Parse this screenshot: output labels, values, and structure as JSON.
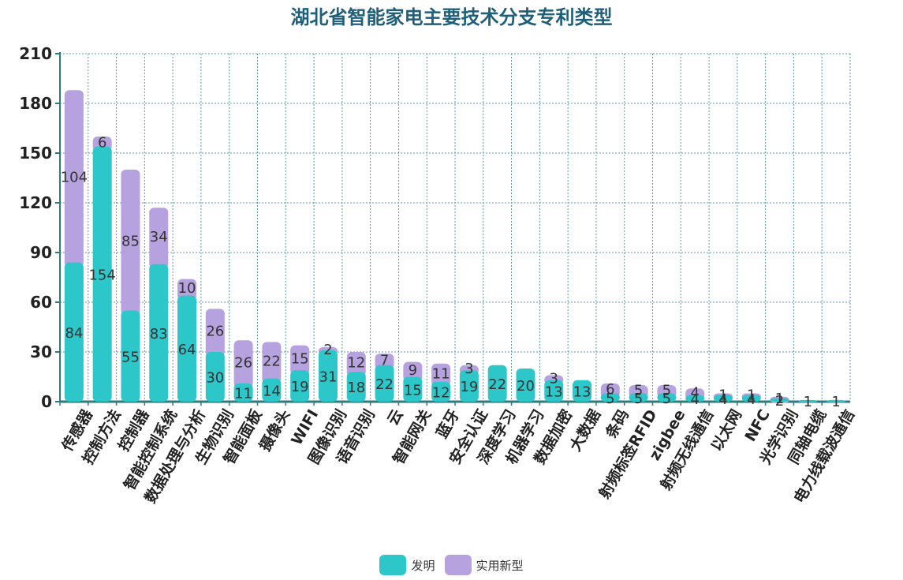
{
  "chart_data": {
    "type": "bar",
    "stacked": true,
    "title": "湖北省智能家电主要技术分支专利类型",
    "ylim": [
      0,
      210
    ],
    "yticks": [
      0,
      30,
      60,
      90,
      120,
      150,
      180,
      210
    ],
    "grid": true,
    "legend_position": "bottom-center",
    "categories": [
      "传感器",
      "控制方法",
      "控制器",
      "智能控制系统",
      "数据处理与分析",
      "生物识别",
      "智能面板",
      "摄像头",
      "WIFI",
      "图像识别",
      "语音识别",
      "云",
      "智能网关",
      "蓝牙",
      "安全认证",
      "深度学习",
      "机器学习",
      "数据加密",
      "大数据",
      "条码",
      "射频标签RFID",
      "zigbee",
      "射频无线通信",
      "以太网",
      "NFC",
      "光学识别",
      "同轴电缆",
      "电力线载波通信"
    ],
    "series": [
      {
        "name": "发明",
        "color": "#2ec7c9",
        "values": [
          84,
          154,
          55,
          83,
          64,
          30,
          11,
          14,
          19,
          31,
          18,
          22,
          15,
          12,
          19,
          22,
          20,
          13,
          13,
          5,
          5,
          5,
          4,
          4,
          4,
          2,
          1,
          1
        ]
      },
      {
        "name": "实用新型",
        "color": "#b6a2de",
        "values": [
          104,
          6,
          85,
          34,
          10,
          26,
          26,
          22,
          15,
          2,
          12,
          7,
          9,
          11,
          3,
          null,
          null,
          3,
          null,
          6,
          5,
          5,
          4,
          1,
          1,
          1,
          null,
          null
        ]
      }
    ]
  }
}
